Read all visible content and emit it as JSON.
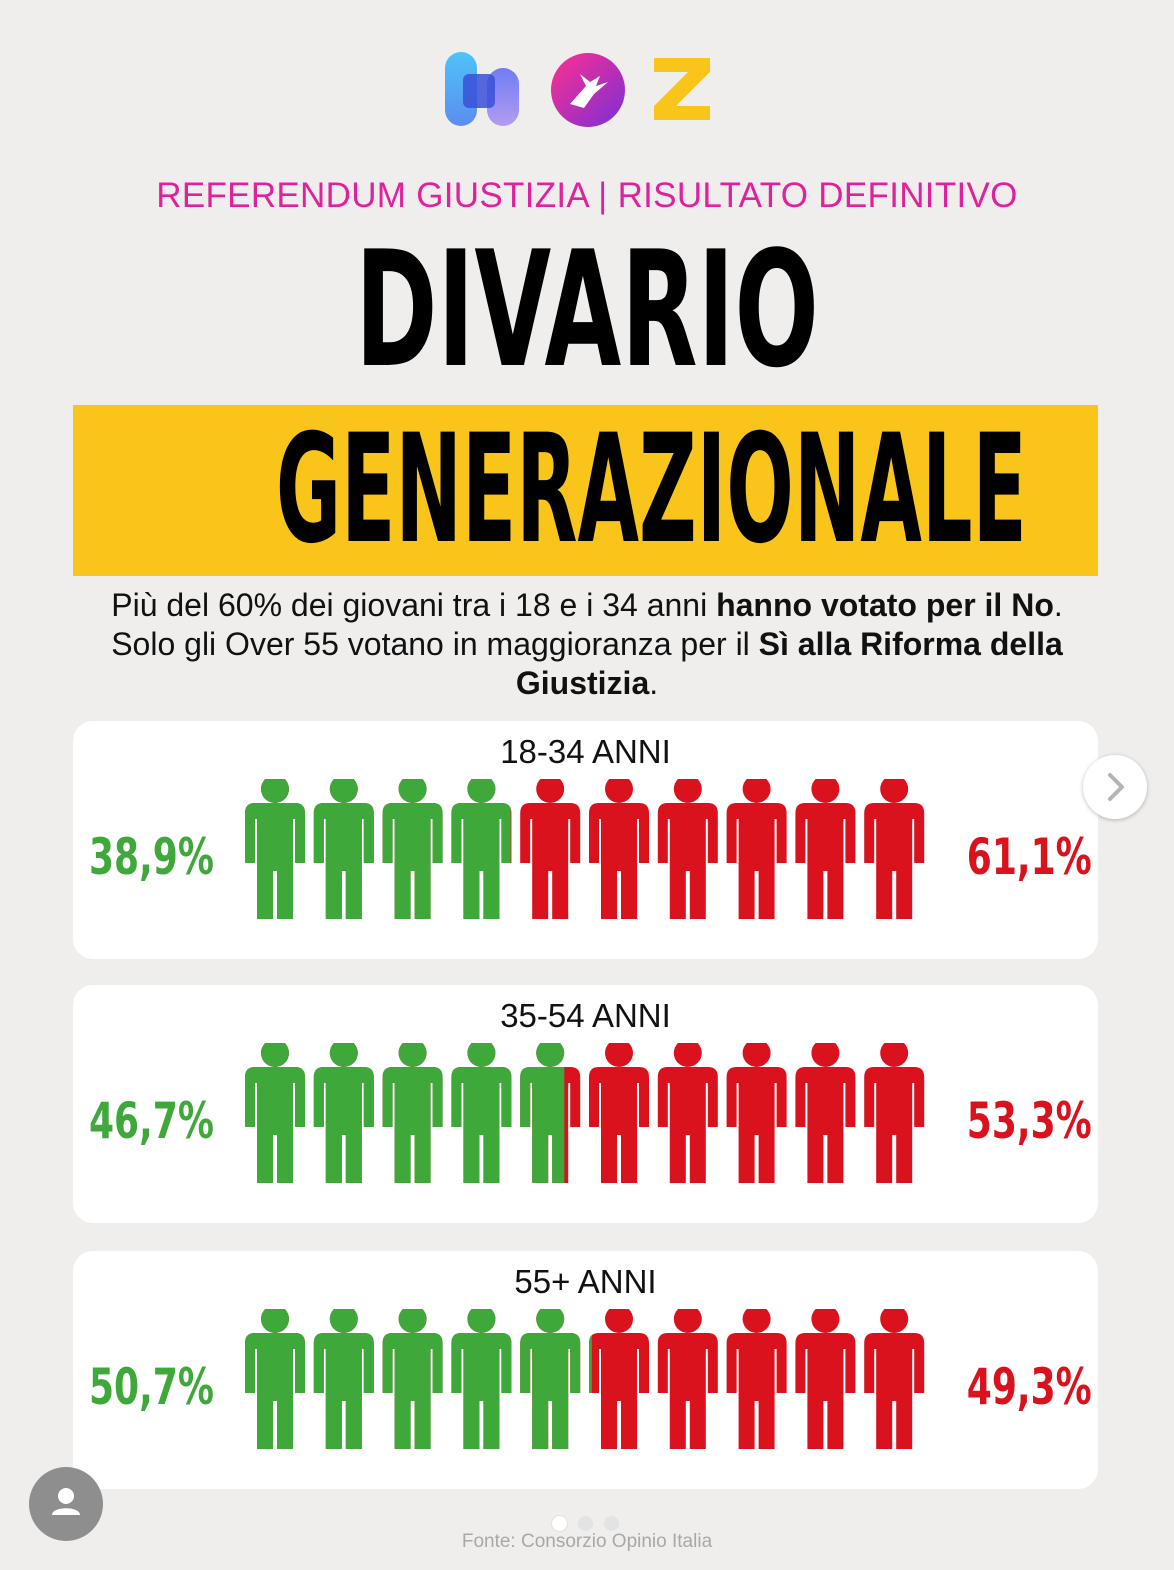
{
  "header": {
    "kicker": "REFERENDUM GIUSTIZIA | RISULTATO DEFINITIVO",
    "title_line1": "DIVARIO",
    "title_line2": "GENERAZIONALE"
  },
  "lead": {
    "part1": "Più del 60% dei giovani tra i 18 e i 34 anni ",
    "bold1": "hanno votato per il No",
    "part2": ". Solo gli Over 55 votano in maggioranza per il ",
    "bold2": "Sì alla Riforma della Giustizia",
    "part3": "."
  },
  "colors": {
    "yes": "#3ea83a",
    "no": "#d9121d",
    "accent": "#e0219c",
    "highlight": "#f9c51b"
  },
  "chart_data": {
    "type": "bar",
    "categories": [
      "18-34 ANNI",
      "35-54 ANNI",
      "55+ ANNI"
    ],
    "series": [
      {
        "values": [
          38.9,
          46.7,
          50.7
        ],
        "labels": [
          "38,9%",
          "46,7%",
          "50,7%"
        ]
      },
      {
        "values": [
          61.1,
          53.3,
          49.3
        ],
        "labels": [
          "61,1%",
          "53,3%",
          "49,3%"
        ]
      }
    ],
    "icons_per_row": 10
  },
  "footer": {
    "source": "Fonte: Consorzio Opinio Italia"
  },
  "icons": {
    "next": "chevron-right-icon",
    "avatar": "user-icon"
  }
}
